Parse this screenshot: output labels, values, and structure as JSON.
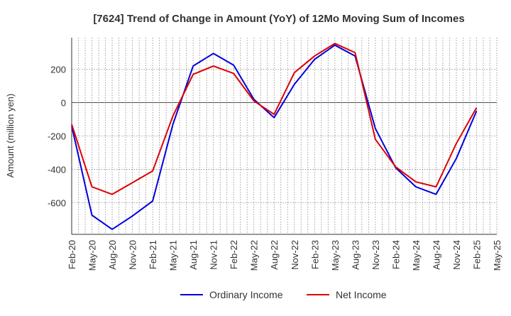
{
  "chart_data": {
    "type": "line",
    "title": "[7624]  Trend of Change in Amount (YoY) of 12Mo Moving Sum of Incomes",
    "xlabel": "",
    "ylabel": "Amount (million yen)",
    "x": [
      "Feb-20",
      "May-20",
      "Aug-20",
      "Nov-20",
      "Feb-21",
      "May-21",
      "Aug-21",
      "Nov-21",
      "Feb-22",
      "May-22",
      "Aug-22",
      "Nov-22",
      "Feb-23",
      "May-23",
      "Aug-23",
      "Nov-23",
      "Feb-24",
      "May-24",
      "Aug-24",
      "Nov-24",
      "Feb-25",
      "May-25"
    ],
    "ylim": [
      -790,
      390
    ],
    "yticks": [
      -600,
      -400,
      -200,
      0,
      200
    ],
    "ytick_labels": [
      "-600",
      "-400",
      "-200",
      "0",
      "200"
    ],
    "grid": true,
    "legend_position": "bottom-center",
    "series": [
      {
        "name": "Ordinary Income",
        "color": "#0000dd",
        "values": [
          -140,
          -675,
          -760,
          -680,
          -590,
          -130,
          220,
          295,
          225,
          20,
          -90,
          110,
          260,
          345,
          280,
          -155,
          -390,
          -505,
          -550,
          -335,
          -50,
          null
        ]
      },
      {
        "name": "Net Income",
        "color": "#dd0000",
        "values": [
          -130,
          -505,
          -550,
          -480,
          -410,
          -80,
          170,
          220,
          175,
          10,
          -70,
          180,
          280,
          355,
          300,
          -220,
          -385,
          -475,
          -505,
          -245,
          -30,
          null
        ]
      }
    ]
  }
}
